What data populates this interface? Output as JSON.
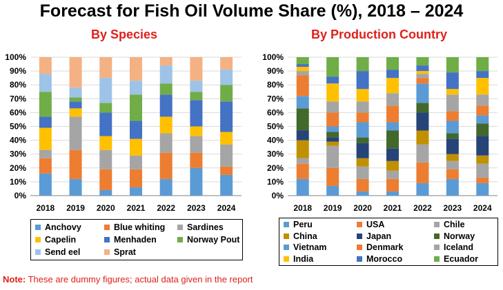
{
  "title": "Forecast for Fish Oil Volume Share (%), 2018 – 2024",
  "note": {
    "prefix": "Note:",
    "text": " These are dummy figures; actual data given in the report"
  },
  "chart_data": [
    {
      "type": "bar",
      "stacked": true,
      "title": "By Species",
      "categories": [
        "2018",
        "2019",
        "2020",
        "2021",
        "2022",
        "2023",
        "2024"
      ],
      "ylim": [
        0,
        100
      ],
      "yticks": [
        "0%",
        "10%",
        "20%",
        "30%",
        "40%",
        "50%",
        "60%",
        "70%",
        "80%",
        "90%",
        "100%"
      ],
      "grid": true,
      "legend": "bottom",
      "series": [
        {
          "name": "Anchovy",
          "color": "#5b9bd5",
          "values": [
            16,
            12,
            4,
            6,
            12,
            20,
            15
          ]
        },
        {
          "name": "Blue whiting",
          "color": "#ed7d31",
          "values": [
            11,
            21,
            15,
            13,
            19,
            11,
            6
          ]
        },
        {
          "name": "Sardines",
          "color": "#a5a5a5",
          "values": [
            6,
            24,
            14,
            10,
            14,
            12,
            16
          ]
        },
        {
          "name": "Capelin",
          "color": "#ffc000",
          "values": [
            16,
            6,
            10,
            12,
            12,
            7,
            9
          ]
        },
        {
          "name": "Menhaden",
          "color": "#4472c4",
          "values": [
            8,
            5,
            17,
            13,
            16,
            19,
            22
          ]
        },
        {
          "name": "Norway Pout",
          "color": "#70ad47",
          "values": [
            18,
            3,
            7,
            19,
            8,
            6,
            12
          ]
        },
        {
          "name": "Send eel",
          "color": "#9dc3e6",
          "values": [
            13,
            7,
            18,
            10,
            13,
            8,
            11
          ]
        },
        {
          "name": "Sprat",
          "color": "#f4b183",
          "values": [
            12,
            22,
            15,
            17,
            6,
            17,
            9
          ]
        }
      ]
    },
    {
      "type": "bar",
      "stacked": true,
      "title": "By Production Country",
      "categories": [
        "2018",
        "2019",
        "2020",
        "2021",
        "2022",
        "2023",
        "2024"
      ],
      "ylim": [
        0,
        100
      ],
      "yticks": [
        "0%",
        "10%",
        "20%",
        "30%",
        "40%",
        "50%",
        "60%",
        "70%",
        "80%",
        "90%",
        "100%"
      ],
      "grid": true,
      "legend": "bottom",
      "series": [
        {
          "name": "Peru",
          "color": "#5b9bd5",
          "values": [
            12,
            7,
            3,
            3,
            9,
            12,
            9
          ]
        },
        {
          "name": "USA",
          "color": "#ed7d31",
          "values": [
            11,
            13,
            9,
            9,
            15,
            7,
            4
          ]
        },
        {
          "name": "Chile",
          "color": "#a5a5a5",
          "values": [
            4,
            16,
            9,
            6,
            13,
            6,
            10
          ]
        },
        {
          "name": "China",
          "color": "#c09000",
          "values": [
            13,
            3,
            6,
            7,
            10,
            5,
            6
          ]
        },
        {
          "name": "Japan",
          "color": "#264478",
          "values": [
            7,
            3,
            11,
            9,
            13,
            11,
            14
          ]
        },
        {
          "name": "Norway",
          "color": "#43682b",
          "values": [
            16,
            4,
            4,
            13,
            7,
            4,
            9
          ]
        },
        {
          "name": "Vietnam",
          "color": "#5b9bd5",
          "values": [
            9,
            4,
            11,
            6,
            14,
            9,
            6
          ]
        },
        {
          "name": "Denmark",
          "color": "#ed7d31",
          "values": [
            15,
            10,
            7,
            12,
            4,
            7,
            7
          ]
        },
        {
          "name": "Iceland",
          "color": "#a5a5a5",
          "values": [
            3,
            8,
            8,
            9,
            3,
            12,
            8
          ]
        },
        {
          "name": "India",
          "color": "#ffc000",
          "values": [
            3,
            13,
            9,
            11,
            2,
            4,
            12
          ]
        },
        {
          "name": "Morocco",
          "color": "#4472c4",
          "values": [
            2,
            5,
            13,
            6,
            4,
            12,
            5
          ]
        },
        {
          "name": "Ecuador",
          "color": "#70ad47",
          "values": [
            5,
            14,
            10,
            9,
            6,
            11,
            10
          ]
        }
      ]
    }
  ]
}
